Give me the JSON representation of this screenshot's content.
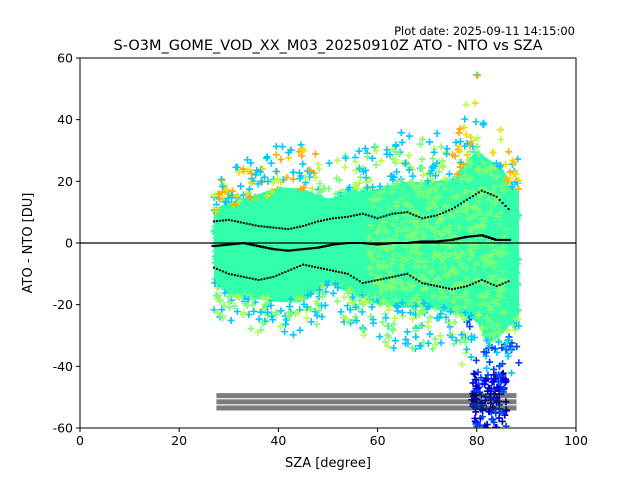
{
  "chart_data": {
    "type": "scatter",
    "plot_date": "Plot date: 2025-09-11 14:15:00",
    "title": "S-O3M_GOME_VOD_XX_M03_20250910Z ATO - NTO vs SZA",
    "xlabel": "SZA [degree]",
    "ylabel": "ATO - NTO [DU]",
    "xlim": [
      0,
      100
    ],
    "ylim": [
      -60,
      60
    ],
    "xticks": [
      "0",
      "20",
      "40",
      "60",
      "80",
      "100"
    ],
    "yticks": [
      "-60",
      "-40",
      "-20",
      "0",
      "20",
      "40",
      "60"
    ],
    "grid": false,
    "legend": "none",
    "marker": "+",
    "zero_line": 0,
    "colors": {
      "cloud_main": "#33ffaa",
      "cloud_green": "#7cff79",
      "cloud_cyan": "#00c8ff",
      "cloud_blue": "#0040ff",
      "cloud_dark_blue": "#0000cd",
      "cloud_yellow": "#ffd600",
      "cloud_orange": "#ffa800",
      "cloud_lime": "#b8ff48"
    },
    "sza_range": [
      27,
      88.5
    ],
    "envelope": {
      "sza": [
        27,
        30,
        35,
        40,
        45,
        50,
        55,
        60,
        65,
        70,
        75,
        80,
        82,
        85,
        88
      ],
      "upper": [
        20,
        24,
        28,
        33,
        32,
        26,
        30,
        32,
        36,
        36,
        38,
        55,
        50,
        45,
        30
      ],
      "lower": [
        -22,
        -28,
        -30,
        -32,
        -32,
        -22,
        -28,
        -33,
        -35,
        -35,
        -38,
        -42,
        -55,
        -50,
        -40
      ]
    },
    "series": [
      {
        "x": [
          27,
          30,
          33,
          36,
          39,
          42,
          45,
          48,
          51,
          54,
          57,
          60,
          63,
          66,
          69,
          72,
          75,
          78,
          81,
          84,
          87
        ],
        "y": [
          7,
          7.5,
          6.5,
          5.5,
          5,
          4.5,
          5.5,
          7,
          8,
          8.5,
          9.5,
          8,
          9.5,
          10,
          8,
          9,
          11,
          14,
          17,
          15,
          10
        ]
      },
      {
        "x": [
          27,
          30,
          33,
          36,
          39,
          42,
          45,
          48,
          51,
          54,
          57,
          60,
          63,
          66,
          69,
          72,
          75,
          78,
          81,
          84,
          87
        ],
        "y": [
          -1,
          -0.5,
          0,
          -1,
          -2,
          -2.5,
          -2,
          -1.5,
          -0.5,
          0,
          0,
          -0.5,
          0,
          0,
          0.5,
          0.5,
          1,
          2,
          2.5,
          1,
          1
        ]
      },
      {
        "x": [
          27,
          30,
          33,
          36,
          39,
          42,
          45,
          48,
          51,
          54,
          57,
          60,
          63,
          66,
          69,
          72,
          75,
          78,
          81,
          84,
          87
        ],
        "y": [
          -8,
          -10,
          -11,
          -12,
          -11,
          -9,
          -7,
          -8,
          -9,
          -10,
          -13,
          -12,
          -11,
          -10,
          -13,
          -14,
          -15,
          -14,
          -12,
          -14,
          -12
        ]
      }
    ],
    "count_rows_y": [
      -49.5,
      -51.5,
      -53.5
    ],
    "count_rows_x": [
      27.5,
      88
    ]
  }
}
